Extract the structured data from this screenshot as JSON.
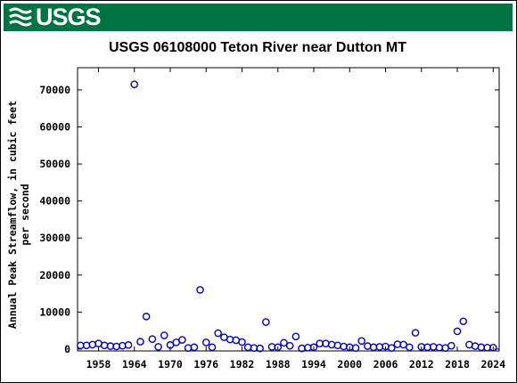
{
  "banner": {
    "logo_text": "USGS",
    "color": "#007342"
  },
  "chart_data": {
    "type": "scatter",
    "title": "USGS 06108000 Teton River near Dutton MT",
    "xlabel": "",
    "ylabel": "Annual Peak Streamflow, in cubic feet per second",
    "ylabel_lines": [
      "Annual Peak Streamflow, in cubic feet",
      "per second"
    ],
    "xlim": [
      1954.5,
      2025
    ],
    "ylim": [
      -500,
      76000
    ],
    "xticks": [
      1958,
      1964,
      1970,
      1976,
      1982,
      1988,
      1994,
      2000,
      2006,
      2012,
      2018,
      2024
    ],
    "yticks": [
      0,
      10000,
      20000,
      30000,
      40000,
      50000,
      60000,
      70000
    ],
    "marker_color": "#0000cc",
    "series": [
      {
        "x": [
          1955,
          1956,
          1957,
          1958,
          1959,
          1960,
          1961,
          1962,
          1963,
          1964,
          1965,
          1966,
          1967,
          1968,
          1969,
          1970,
          1971,
          1972,
          1973,
          1974,
          1975,
          1976,
          1977,
          1978,
          1979,
          1980,
          1981,
          1982,
          1983,
          1984,
          1985,
          1986,
          1987,
          1988,
          1989,
          1990,
          1991,
          1992,
          1993,
          1994,
          1995,
          1996,
          1997,
          1998,
          1999,
          2000,
          2001,
          2002,
          2003,
          2004,
          2005,
          2006,
          2007,
          2008,
          2009,
          2010,
          2011,
          2012,
          2013,
          2014,
          2015,
          2016,
          2017,
          2018,
          2019,
          2020,
          2021,
          2022,
          2023,
          2024
        ],
        "y": [
          1000,
          1000,
          1200,
          1500,
          1000,
          800,
          700,
          900,
          1100,
          71500,
          2000,
          8800,
          2700,
          600,
          3700,
          1100,
          1800,
          2500,
          300,
          500,
          16000,
          1800,
          500,
          4300,
          3200,
          2600,
          2400,
          1900,
          500,
          300,
          200,
          7300,
          600,
          500,
          1700,
          900,
          3400,
          200,
          400,
          500,
          1500,
          1500,
          1200,
          1000,
          700,
          500,
          300,
          2200,
          800,
          500,
          600,
          700,
          300,
          1300,
          1200,
          500,
          4400,
          600,
          500,
          600,
          400,
          300,
          900,
          4800,
          7500,
          1200,
          800,
          500,
          400,
          400
        ]
      }
    ]
  }
}
